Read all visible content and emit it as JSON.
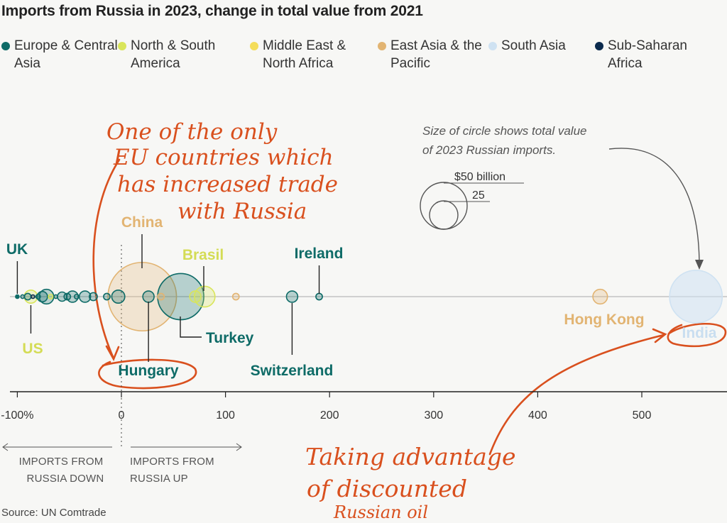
{
  "title": "Imports from Russia in 2023, change in total value from 2021",
  "source": "Source: UN Comtrade",
  "colors": {
    "europe": "#0e6b67",
    "americas": "#d9e55a",
    "mena": "#f4dd5a",
    "eastasia": "#e2b472",
    "southasia": "#cfe2f2",
    "africa": "#0b2a4d",
    "annotation": "#d9501e",
    "axis": "#222222"
  },
  "legend": [
    {
      "label": "Europe & Central Asia",
      "color_key": "europe"
    },
    {
      "label": "North & South America",
      "color_key": "americas"
    },
    {
      "label": "Middle East & North Africa",
      "color_key": "mena"
    },
    {
      "label": "East Asia & the Pacific",
      "color_key": "eastasia"
    },
    {
      "label": "South Asia",
      "color_key": "southasia"
    },
    {
      "label": "Sub-Saharan Africa",
      "color_key": "africa"
    }
  ],
  "size_key": {
    "note_line1": "Size of circle shows total value",
    "note_line2": "of 2023 Russian imports.",
    "big_label": "$50 billion",
    "small_label": "25"
  },
  "axis_notes": {
    "down_line1": "IMPORTS FROM",
    "down_line2": "RUSSIA DOWN",
    "up_line1": "IMPORTS FROM",
    "up_line2": "RUSSIA UP"
  },
  "handwritten": {
    "eu_lines": [
      "One of the only",
      "EU countries which",
      "has increased trade",
      "with Russia"
    ],
    "oil_lines": [
      "Taking advantage",
      "of discounted",
      "Russian oil"
    ]
  },
  "chart_data": {
    "type": "scatter",
    "title": "Imports from Russia in 2023, change in total value from 2021",
    "xlabel": "",
    "xlim": [
      -105,
      580
    ],
    "x_ticks": [
      -100,
      0,
      100,
      200,
      300,
      400,
      500
    ],
    "x_tick_labels": [
      "-100%",
      "0",
      "100",
      "200",
      "300",
      "400",
      "500"
    ],
    "size_encoding": "value of 2023 Russian imports (billion $)",
    "labeled_points": [
      {
        "name": "UK",
        "x": -100,
        "value": 0.1,
        "region": "europe"
      },
      {
        "name": "US",
        "x": -87,
        "value": 4,
        "region": "americas"
      },
      {
        "name": "China",
        "x": 20,
        "value": 110,
        "region": "eastasia"
      },
      {
        "name": "Hungary",
        "x": 26,
        "value": 3,
        "region": "europe"
      },
      {
        "name": "Brasil",
        "x": 80,
        "value": 10,
        "region": "americas"
      },
      {
        "name": "Turkey",
        "x": 57,
        "value": 50,
        "region": "europe"
      },
      {
        "name": "Switzerland",
        "x": 164,
        "value": 3,
        "region": "europe"
      },
      {
        "name": "Ireland",
        "x": 190,
        "value": 1,
        "region": "europe"
      },
      {
        "name": "Hong Kong",
        "x": 460,
        "value": 5,
        "region": "eastasia"
      },
      {
        "name": "India",
        "x": 552,
        "value": 65,
        "region": "southasia"
      }
    ],
    "other_points": [
      {
        "x": -95,
        "value": 0.3,
        "region": "europe"
      },
      {
        "x": -90,
        "value": 1,
        "region": "europe"
      },
      {
        "x": -85,
        "value": 0.2,
        "region": "africa"
      },
      {
        "x": -80,
        "value": 0.5,
        "region": "europe"
      },
      {
        "x": -76,
        "value": 2.5,
        "region": "europe"
      },
      {
        "x": -72,
        "value": 5,
        "region": "europe"
      },
      {
        "x": -68,
        "value": 0.5,
        "region": "americas"
      },
      {
        "x": -63,
        "value": 0.3,
        "region": "europe"
      },
      {
        "x": -57,
        "value": 2,
        "region": "europe"
      },
      {
        "x": -52,
        "value": 1,
        "region": "europe"
      },
      {
        "x": -47,
        "value": 3,
        "region": "europe"
      },
      {
        "x": -43,
        "value": 0.5,
        "region": "europe"
      },
      {
        "x": -35,
        "value": 3,
        "region": "europe"
      },
      {
        "x": -27,
        "value": 1.5,
        "region": "europe"
      },
      {
        "x": -14,
        "value": 1,
        "region": "europe"
      },
      {
        "x": -3,
        "value": 4,
        "region": "europe"
      },
      {
        "x": 38,
        "value": 1,
        "region": "eastasia"
      },
      {
        "x": 71,
        "value": 3,
        "region": "americas"
      },
      {
        "x": 110,
        "value": 1,
        "region": "eastasia"
      }
    ]
  }
}
